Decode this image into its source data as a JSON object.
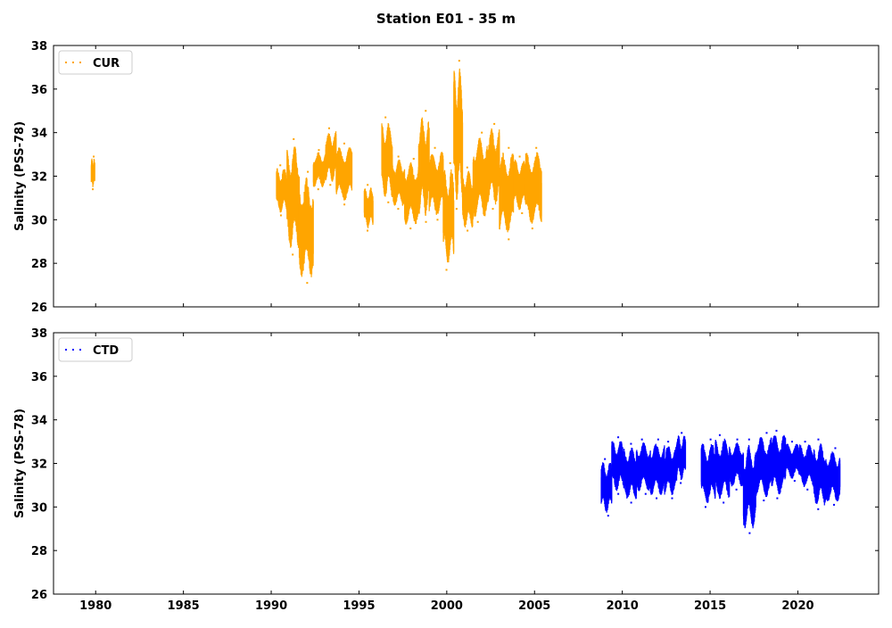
{
  "figure": {
    "title": "Station E01 - 35 m"
  },
  "chart_data": [
    {
      "type": "scatter",
      "panel": "top",
      "ylabel": "Salinity (PSS-78)",
      "ylim": [
        26,
        38
      ],
      "xlim": [
        1977.6,
        2024.6
      ],
      "yticks": [
        26,
        28,
        30,
        32,
        34,
        36,
        38
      ],
      "xticks": [
        1980,
        1985,
        1990,
        1995,
        2000,
        2005,
        2010,
        2015,
        2020
      ],
      "x_ticklabels_visible": false,
      "legend_position": "top-left",
      "grid": false,
      "series": [
        {
          "name": "CUR",
          "color": "#ffa500",
          "segments": [
            {
              "start": 1979.75,
              "end": 1979.95,
              "min": 31.4,
              "max": 32.9
            },
            {
              "start": 1990.3,
              "end": 1990.9,
              "min": 30.2,
              "max": 32.5
            },
            {
              "start": 1990.9,
              "end": 1991.6,
              "min": 28.4,
              "max": 33.7
            },
            {
              "start": 1991.6,
              "end": 1992.4,
              "min": 27.1,
              "max": 32.2
            },
            {
              "start": 1992.4,
              "end": 1993.1,
              "min": 31.4,
              "max": 33.2
            },
            {
              "start": 1993.1,
              "end": 1993.7,
              "min": 31.6,
              "max": 34.2
            },
            {
              "start": 1993.7,
              "end": 1994.6,
              "min": 30.7,
              "max": 33.5
            },
            {
              "start": 1995.3,
              "end": 1995.8,
              "min": 29.5,
              "max": 31.6
            },
            {
              "start": 1996.3,
              "end": 1996.9,
              "min": 30.8,
              "max": 34.7
            },
            {
              "start": 1996.9,
              "end": 1997.6,
              "min": 30.5,
              "max": 32.9
            },
            {
              "start": 1997.6,
              "end": 1998.4,
              "min": 29.6,
              "max": 32.8
            },
            {
              "start": 1998.4,
              "end": 1999.0,
              "min": 29.9,
              "max": 35.0
            },
            {
              "start": 1999.0,
              "end": 1999.8,
              "min": 30.0,
              "max": 33.3
            },
            {
              "start": 1999.8,
              "end": 2000.4,
              "min": 27.7,
              "max": 32.6
            },
            {
              "start": 2000.4,
              "end": 2000.9,
              "min": 30.5,
              "max": 37.3
            },
            {
              "start": 2000.9,
              "end": 2001.5,
              "min": 29.5,
              "max": 32.4
            },
            {
              "start": 2001.5,
              "end": 2002.3,
              "min": 29.9,
              "max": 34.0
            },
            {
              "start": 2002.3,
              "end": 2003.0,
              "min": 30.5,
              "max": 34.4
            },
            {
              "start": 2003.0,
              "end": 2003.8,
              "min": 29.1,
              "max": 33.3
            },
            {
              "start": 2003.8,
              "end": 2004.5,
              "min": 30.3,
              "max": 32.9
            },
            {
              "start": 2004.5,
              "end": 2005.4,
              "min": 29.6,
              "max": 33.3
            }
          ]
        }
      ]
    },
    {
      "type": "scatter",
      "panel": "bottom",
      "ylabel": "Salinity (PSS-78)",
      "ylim": [
        26,
        38
      ],
      "xlim": [
        1977.6,
        2024.6
      ],
      "yticks": [
        26,
        28,
        30,
        32,
        34,
        36,
        38
      ],
      "xticks": [
        1980,
        1985,
        1990,
        1995,
        2000,
        2005,
        2010,
        2015,
        2020
      ],
      "xticklabels": [
        "1980",
        "1985",
        "1990",
        "1995",
        "2000",
        "2005",
        "2010",
        "2015",
        "2020"
      ],
      "legend_position": "top-left",
      "grid": false,
      "series": [
        {
          "name": "CTD",
          "color": "#0000ff",
          "segments": [
            {
              "start": 2008.8,
              "end": 2009.4,
              "min": 29.6,
              "max": 32.2
            },
            {
              "start": 2009.4,
              "end": 2010.1,
              "min": 30.6,
              "max": 33.2
            },
            {
              "start": 2010.1,
              "end": 2010.8,
              "min": 30.2,
              "max": 32.9
            },
            {
              "start": 2010.8,
              "end": 2011.6,
              "min": 30.6,
              "max": 33.1
            },
            {
              "start": 2011.6,
              "end": 2012.4,
              "min": 30.4,
              "max": 33.1
            },
            {
              "start": 2012.4,
              "end": 2013.1,
              "min": 30.4,
              "max": 33.0
            },
            {
              "start": 2013.1,
              "end": 2013.6,
              "min": 31.1,
              "max": 33.4
            },
            {
              "start": 2014.5,
              "end": 2015.3,
              "min": 30.0,
              "max": 33.1
            },
            {
              "start": 2015.3,
              "end": 2016.1,
              "min": 30.2,
              "max": 33.3
            },
            {
              "start": 2016.1,
              "end": 2016.9,
              "min": 30.8,
              "max": 33.1
            },
            {
              "start": 2016.9,
              "end": 2017.6,
              "min": 28.8,
              "max": 33.1
            },
            {
              "start": 2017.6,
              "end": 2018.5,
              "min": 30.3,
              "max": 33.4
            },
            {
              "start": 2018.5,
              "end": 2019.3,
              "min": 30.4,
              "max": 33.5
            },
            {
              "start": 2019.3,
              "end": 2020.1,
              "min": 31.2,
              "max": 33.0
            },
            {
              "start": 2020.1,
              "end": 2020.9,
              "min": 30.8,
              "max": 33.0
            },
            {
              "start": 2020.9,
              "end": 2021.6,
              "min": 29.9,
              "max": 33.1
            },
            {
              "start": 2021.6,
              "end": 2022.4,
              "min": 30.1,
              "max": 32.7
            }
          ]
        }
      ]
    }
  ]
}
